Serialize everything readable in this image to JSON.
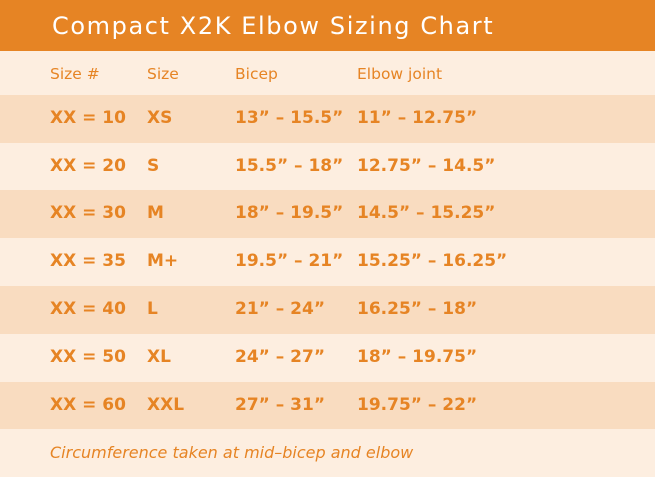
{
  "title": "Compact X2K Elbow Sizing Chart",
  "columns": [
    "Size #",
    "Size",
    "Bicep",
    "Elbow joint"
  ],
  "rows": [
    [
      "XX = 10",
      "XS",
      "13” – 15.5”",
      "11” – 12.75”"
    ],
    [
      "XX = 20",
      "S",
      "15.5” – 18”",
      "12.75” – 14.5”"
    ],
    [
      "XX = 30",
      "M",
      "18” – 19.5”",
      "14.5” – 15.25”"
    ],
    [
      "XX = 35",
      "M+",
      "19.5” – 21”",
      "15.25” – 16.25”"
    ],
    [
      "XX = 40",
      "L",
      "21” – 24”",
      "16.25” – 18”"
    ],
    [
      "XX = 50",
      "XL",
      "24” – 27”",
      "18” – 19.75”"
    ],
    [
      "XX = 60",
      "XXL",
      "27” – 31”",
      "19.75” – 22”"
    ]
  ],
  "footnote": "Circumference taken at mid–bicep and elbow",
  "colors": {
    "accent": "#e68424",
    "band_light": "#fdeee0",
    "band_dark": "#f9dcc0",
    "header_text": "#ffffff"
  }
}
